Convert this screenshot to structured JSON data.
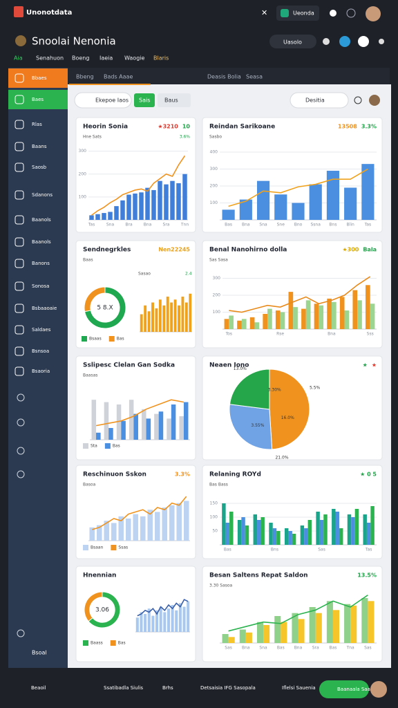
{
  "header": {
    "app_name": "Unonotdata",
    "tab": "Ueonda",
    "page_title": "Snoolai Nenonia",
    "search": "Uasolo",
    "nav": [
      "Aia",
      "Senahuon",
      "Boeng",
      "Iaeia",
      "Waogie",
      "Blaris"
    ]
  },
  "toolbar": {
    "tabs": [
      "Bbeng",
      "Bads Aaae"
    ],
    "right": [
      "Deasis Bolia",
      "Seasa"
    ]
  },
  "filters": {
    "select": "Ekepoe Iaos",
    "apply": "Sais",
    "reset": "Baus",
    "search": "Desitia"
  },
  "sidebar": {
    "items": [
      "Bbaes",
      "Baes",
      "Rlas",
      "Baans",
      "Saosb",
      "Sdanons",
      "Baanols",
      "Baanols",
      "Banons",
      "Sonosa",
      "Bsbaaoaie",
      "Saldaes",
      "Bsnsoa",
      "Bsaoria"
    ],
    "bottom": "Bsoal"
  },
  "footer": {
    "items": [
      "Beaoil",
      "Ssatibadla Siulis",
      "Brhs",
      "Detsaisia IFG Sasopala",
      "Iflelsi Sauenia"
    ],
    "button": "Baanaala Saasiia"
  },
  "chart_data": [
    {
      "type": "bar",
      "title": "Heorin Sonia",
      "subtitle": "Hne Sats",
      "note": "3.6%",
      "badges": [
        {
          "text": "★3210",
          "color": "#e03a2f"
        },
        {
          "text": "10",
          "color": "#22a34a"
        }
      ],
      "categories": [
        "Tas",
        null,
        null,
        "Sna",
        null,
        null,
        "Bra",
        null,
        null,
        "Bna",
        null,
        null,
        "Sra",
        null,
        null,
        "Tnn"
      ],
      "series": [
        {
          "type": "bar",
          "color": "#3f7fd9",
          "values": [
            20,
            25,
            30,
            35,
            60,
            85,
            110,
            115,
            120,
            140,
            130,
            170,
            155,
            170,
            160,
            200
          ]
        },
        {
          "type": "line",
          "color": "#f0931e",
          "values": [
            20,
            40,
            55,
            75,
            90,
            110,
            120,
            130,
            135,
            125,
            160,
            180,
            200,
            190,
            240,
            280
          ]
        }
      ],
      "ylim": [
        0,
        320
      ],
      "yticks": [
        100,
        200,
        300
      ]
    },
    {
      "type": "bar",
      "title": "Reindan Sarikoane",
      "subtitle": "Sasbo",
      "badges": [
        {
          "text": "13508",
          "color": "#f0931e"
        },
        {
          "text": "3.3%",
          "color": "#22a34a"
        }
      ],
      "categories": [
        "Bas",
        "Bna",
        "Sna",
        "Sne",
        "Bno",
        "Ssna",
        "Bns",
        "Blin",
        "Tas"
      ],
      "series": [
        {
          "type": "bar",
          "color": "#4a8fe0",
          "values": [
            60,
            120,
            230,
            150,
            100,
            210,
            290,
            190,
            330
          ]
        },
        {
          "type": "line",
          "color": "#f0a21c",
          "values": [
            80,
            110,
            170,
            160,
            195,
            210,
            240,
            240,
            300
          ]
        }
      ],
      "ylim": [
        0,
        400
      ],
      "yticks": [
        100,
        200,
        300,
        400
      ]
    },
    {
      "type": "donut",
      "title": "Sendnegrkles",
      "subtitle": "Baas",
      "badges": [
        {
          "text": "Nen22245",
          "color": "#e8a01a"
        }
      ],
      "center_label": "5 8.X",
      "categories": [
        "Bsaas",
        "Bas"
      ],
      "values": [
        72,
        28
      ],
      "colors": [
        "#1fa84f",
        "#f0931e"
      ]
    },
    {
      "type": "bar",
      "subtitle": "Sasao",
      "note": "2.4",
      "categories": [
        null,
        null,
        null,
        null,
        null,
        null,
        null,
        null,
        null,
        null,
        null,
        null,
        null,
        null
      ],
      "series": [
        {
          "type": "bar",
          "color": "#f0a21c",
          "values": [
            30,
            45,
            35,
            50,
            40,
            55,
            45,
            60,
            50,
            55,
            45,
            60,
            50,
            65
          ]
        }
      ],
      "ylim": [
        0,
        80
      ]
    },
    {
      "type": "bar",
      "title": "Benal Nanohirno dolla",
      "subtitle": "Sas Sasa",
      "badges": [
        {
          "text": "★300",
          "color": "#d9a800"
        },
        {
          "text": "Bala",
          "color": "#22a34a"
        }
      ],
      "categories": [
        "Tos",
        null,
        null,
        null,
        "Rse",
        null,
        null,
        null,
        "Bna",
        null,
        null,
        "Sss"
      ],
      "series": [
        {
          "type": "bar",
          "color": "#f0931e",
          "values": [
            60,
            50,
            70,
            90,
            110,
            220,
            120,
            150,
            180,
            190,
            230,
            260
          ]
        },
        {
          "type": "bar",
          "color": "#9bd58f",
          "values": [
            80,
            60,
            40,
            120,
            100,
            130,
            170,
            140,
            160,
            110,
            170,
            150
          ]
        },
        {
          "type": "line",
          "color": "#e88a1a",
          "values": [
            110,
            100,
            120,
            140,
            130,
            160,
            190,
            150,
            170,
            200,
            260,
            310
          ]
        }
      ],
      "ylim": [
        0,
        400
      ],
      "yticks": [
        100,
        200,
        300
      ]
    },
    {
      "type": "bar",
      "title": "Sslipesc Clelan Gan Sodka",
      "subtitle": "Baasas",
      "categories": [
        null,
        null,
        null,
        null,
        null,
        null,
        null,
        null
      ],
      "series": [
        {
          "name": "Sta",
          "type": "bar",
          "color": "#cfd3d9",
          "values": [
            170,
            160,
            150,
            170,
            130,
            110,
            90,
            100
          ]
        },
        {
          "name": "Bas",
          "type": "bar",
          "color": "#4a8fe0",
          "values": [
            30,
            50,
            80,
            110,
            90,
            120,
            150,
            160
          ]
        },
        {
          "type": "line",
          "color": "#f0931e",
          "values": [
            60,
            70,
            80,
            100,
            130,
            150,
            170,
            160
          ]
        }
      ],
      "ylim": [
        0,
        200
      ]
    },
    {
      "type": "pie",
      "title": "Neaen Iono",
      "badges": [
        {
          "text": "★",
          "color": "#22a34a"
        },
        {
          "text": "★",
          "color": "#e03a2f"
        }
      ],
      "values": [
        49,
        28,
        23
      ],
      "colors": [
        "#f0931e",
        "#6fa3e6",
        "#25a64a"
      ],
      "annotations": [
        "13.0%",
        "3.30%",
        "5.5%",
        "16.0%",
        "21.0%",
        "3.55%"
      ]
    },
    {
      "type": "bar",
      "title": "Reschinuon Sskon",
      "subtitle": "Basoa",
      "badges": [
        {
          "text": "3.3%",
          "color": "#f0931e"
        }
      ],
      "categories": [
        null,
        null,
        null,
        null,
        null,
        null,
        null,
        null,
        null,
        null,
        null,
        null,
        null,
        null
      ],
      "series": [
        {
          "name": "Bsaan",
          "type": "bar",
          "color": "#bcd4f2",
          "values": [
            60,
            70,
            90,
            80,
            110,
            100,
            120,
            110,
            140,
            130,
            150,
            160,
            170,
            180
          ]
        },
        {
          "name": "Ssas",
          "type": "line",
          "color": "#f0931e",
          "values": [
            50,
            60,
            80,
            100,
            90,
            120,
            130,
            140,
            120,
            150,
            140,
            170,
            160,
            200
          ]
        }
      ],
      "ylim": [
        0,
        250
      ]
    },
    {
      "type": "bar",
      "title": "Relaning ROYd",
      "subtitle": "Bas Bass",
      "badges": [
        {
          "text": "★ 0 5",
          "color": "#22a34a"
        }
      ],
      "categories": [
        "Bas",
        null,
        null,
        "Bns",
        null,
        null,
        "Sas",
        null,
        null,
        "Tas"
      ],
      "series": [
        {
          "type": "bar",
          "color": "#1aa58a",
          "values": [
            150,
            90,
            110,
            80,
            60,
            70,
            120,
            130,
            110,
            110
          ]
        },
        {
          "type": "bar",
          "color": "#4a8fe0",
          "values": [
            80,
            100,
            90,
            60,
            50,
            60,
            90,
            120,
            100,
            80
          ]
        },
        {
          "type": "bar",
          "color": "#2bb34f",
          "values": [
            120,
            70,
            100,
            50,
            40,
            90,
            110,
            60,
            130,
            140
          ]
        }
      ],
      "ylim": [
        0,
        200
      ],
      "yticks": [
        50,
        100,
        150
      ]
    },
    {
      "type": "donut",
      "title": "Hnennian",
      "center_label": "3.06",
      "categories": [
        "Baass",
        "Bas"
      ],
      "values": [
        64,
        36
      ],
      "colors": [
        "#2bb34f",
        "#f0931e"
      ]
    },
    {
      "type": "bar",
      "categories": [
        null,
        null,
        null,
        null,
        null,
        null,
        null,
        null,
        null,
        null,
        null,
        null,
        null,
        null
      ],
      "series": [
        {
          "type": "bar",
          "color": "#a9c8ef",
          "values": [
            40,
            55,
            50,
            65,
            45,
            60,
            70,
            55,
            65,
            75,
            60,
            80,
            70,
            85
          ]
        },
        {
          "type": "line",
          "color": "#3a5fa8",
          "values": [
            45,
            50,
            60,
            55,
            65,
            50,
            70,
            60,
            75,
            65,
            80,
            70,
            90,
            85
          ]
        }
      ],
      "ylim": [
        0,
        100
      ]
    },
    {
      "type": "bar",
      "title": "Besan Saltens Repat Saldon",
      "subtitle": "3.30 Sasoa",
      "badges": [
        {
          "text": "13.5%",
          "color": "#22a34a"
        }
      ],
      "categories": [
        "Sas",
        "Bna",
        "Sna",
        "Bas",
        "Bna",
        "Sra",
        "Bas",
        "Tna",
        "Sas"
      ],
      "series": [
        {
          "type": "bar",
          "color": "#8fd18b",
          "values": [
            30,
            45,
            70,
            90,
            100,
            120,
            140,
            130,
            150
          ]
        },
        {
          "type": "bar",
          "color": "#f5c52a",
          "values": [
            20,
            35,
            60,
            70,
            80,
            100,
            110,
            125,
            140
          ]
        },
        {
          "type": "line",
          "color": "#2bb34f",
          "values": [
            40,
            55,
            70,
            65,
            95,
            110,
            140,
            120,
            160
          ]
        }
      ],
      "ylim": [
        0,
        180
      ]
    }
  ]
}
